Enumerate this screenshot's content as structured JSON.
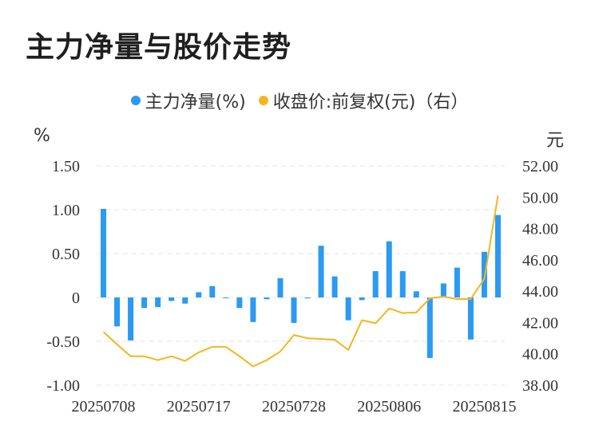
{
  "title": "主力净量与股价走势",
  "legend": {
    "net": "主力净量(%)",
    "price": "收盘价:前复权(元)（右）"
  },
  "units": {
    "left": "%",
    "right": "元"
  },
  "colors": {
    "bar": "#2b9af0",
    "bar_dark": "#1677e0",
    "line": "#f5b51b",
    "grid": "#e3e3e3",
    "text": "#333333"
  },
  "chart_data": {
    "type": "bar+line",
    "x": [
      "20250708",
      "20250709",
      "20250710",
      "20250711",
      "20250714",
      "20250715",
      "20250716",
      "20250717",
      "20250718",
      "20250721",
      "20250722",
      "20250723",
      "20250724",
      "20250725",
      "20250728",
      "20250729",
      "20250730",
      "20250731",
      "20250801",
      "20250804",
      "20250805",
      "20250806",
      "20250807",
      "20250808",
      "20250811",
      "20250812",
      "20250813",
      "20250814",
      "20250815",
      "20250818"
    ],
    "x_tick_labels": [
      "20250708",
      "20250717",
      "20250728",
      "20250806",
      "20250815"
    ],
    "x_tick_index": [
      0,
      7,
      14,
      21,
      28
    ],
    "series": [
      {
        "name": "主力净量(%)",
        "axis": "left",
        "kind": "bar",
        "values": [
          1.01,
          -0.33,
          -0.49,
          -0.12,
          -0.11,
          -0.04,
          -0.07,
          0.06,
          0.13,
          0.0,
          -0.12,
          -0.28,
          -0.02,
          0.22,
          -0.29,
          -0.01,
          0.59,
          0.24,
          -0.26,
          -0.03,
          0.3,
          0.64,
          0.3,
          0.07,
          -0.69,
          0.16,
          0.34,
          -0.48,
          0.52,
          0.94
        ]
      },
      {
        "name": "收盘价:前复权(元)（右）",
        "axis": "right",
        "kind": "line",
        "values": [
          41.4,
          40.6,
          39.85,
          39.85,
          39.6,
          39.85,
          39.55,
          40.1,
          40.45,
          40.45,
          39.85,
          39.2,
          39.6,
          40.15,
          41.2,
          41.0,
          40.95,
          40.9,
          40.25,
          42.15,
          41.95,
          42.9,
          42.6,
          42.65,
          43.55,
          43.65,
          43.5,
          43.5,
          44.8,
          50.1
        ]
      }
    ],
    "y_left": {
      "min": -1.0,
      "max": 1.5,
      "ticks": [
        1.5,
        1.0,
        0.5,
        0,
        -0.5,
        -1.0
      ],
      "tick_labels": [
        "1.50",
        "1.00",
        "0.50",
        "0",
        "-0.50",
        "-1.00"
      ]
    },
    "y_right": {
      "min": 38.0,
      "max": 52.0,
      "ticks": [
        52,
        50,
        48,
        46,
        44,
        42,
        40,
        38
      ],
      "tick_labels": [
        "52.00",
        "50.00",
        "48.00",
        "46.00",
        "44.00",
        "42.00",
        "40.00",
        "38.00"
      ]
    },
    "grid": true
  }
}
